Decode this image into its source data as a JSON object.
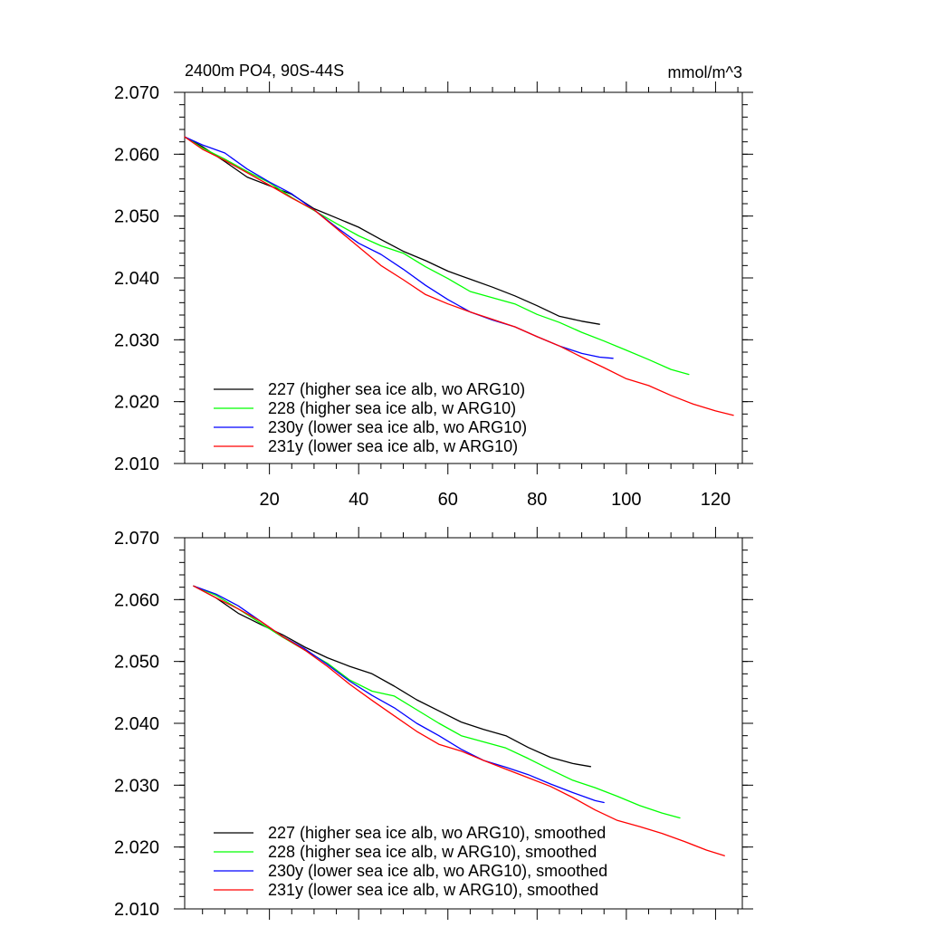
{
  "figure_title": "2400m PO4, 90S-44S",
  "units_label": "mmol/m^3",
  "series_colors": {
    "227": "#000000",
    "228": "#00ff00",
    "230y": "#0000ff",
    "231y": "#ff0000"
  },
  "chart_data": [
    {
      "type": "line",
      "panel": "top",
      "title": "2400m PO4, 90S-44S",
      "units": "mmol/m^3",
      "xlim": [
        1,
        126
      ],
      "ylim": [
        2.01,
        2.07
      ],
      "x_ticks": [
        20,
        40,
        60,
        80,
        100,
        120
      ],
      "x_tick_labels": [
        "20",
        "40",
        "60",
        "80",
        "100",
        "120"
      ],
      "y_ticks": [
        2.01,
        2.02,
        2.03,
        2.04,
        2.05,
        2.06,
        2.07
      ],
      "y_tick_labels": [
        "2.010",
        "2.020",
        "2.030",
        "2.040",
        "2.050",
        "2.060",
        "2.070"
      ],
      "legend_position": "bottom-left",
      "series": [
        {
          "id": "227",
          "name": "227 (higher sea ice alb, wo ARG10)",
          "color": "#000000",
          "x": [
            1,
            5,
            10,
            15,
            20,
            25,
            30,
            35,
            40,
            45,
            50,
            55,
            60,
            65,
            70,
            75,
            80,
            85,
            90,
            94
          ],
          "values": [
            2.0628,
            2.0612,
            2.0588,
            2.0563,
            2.0549,
            2.0535,
            2.0512,
            2.0497,
            2.0482,
            2.0462,
            2.0443,
            2.0428,
            2.0411,
            2.0398,
            2.0385,
            2.0371,
            2.0355,
            2.0338,
            2.033,
            2.0325
          ]
        },
        {
          "id": "228",
          "name": "228 (higher sea ice alb, w ARG10)",
          "color": "#00ff00",
          "x": [
            1,
            5,
            10,
            15,
            20,
            25,
            30,
            35,
            40,
            45,
            50,
            55,
            60,
            65,
            70,
            75,
            80,
            85,
            90,
            95,
            100,
            105,
            110,
            114
          ],
          "values": [
            2.0628,
            2.061,
            2.0592,
            2.0572,
            2.0554,
            2.053,
            2.0509,
            2.0488,
            2.0468,
            2.0452,
            2.044,
            2.0418,
            2.0399,
            2.0378,
            2.0368,
            2.0358,
            2.0341,
            2.0328,
            2.0312,
            2.0298,
            2.0283,
            2.0268,
            2.0252,
            2.0244
          ]
        },
        {
          "id": "230y",
          "name": "230y (lower sea ice alb, wo ARG10)",
          "color": "#0000ff",
          "x": [
            1,
            5,
            10,
            15,
            20,
            25,
            30,
            35,
            40,
            45,
            50,
            55,
            60,
            65,
            70,
            75,
            80,
            85,
            90,
            94,
            97
          ],
          "values": [
            2.0628,
            2.0615,
            2.0602,
            2.0576,
            2.0555,
            2.0536,
            2.051,
            2.0482,
            2.0456,
            2.0438,
            2.0414,
            2.0388,
            2.0365,
            2.0345,
            2.0332,
            2.0321,
            2.0305,
            2.029,
            2.0278,
            2.0272,
            2.027
          ]
        },
        {
          "id": "231y",
          "name": "231y (lower sea ice alb, w ARG10)",
          "color": "#ff0000",
          "x": [
            1,
            5,
            10,
            15,
            20,
            25,
            30,
            35,
            40,
            45,
            50,
            55,
            60,
            65,
            70,
            75,
            80,
            85,
            90,
            95,
            100,
            105,
            110,
            115,
            120,
            124
          ],
          "values": [
            2.0628,
            2.0608,
            2.059,
            2.057,
            2.055,
            2.0529,
            2.051,
            2.048,
            2.045,
            2.042,
            2.0397,
            2.0373,
            2.0358,
            2.0345,
            2.0333,
            2.0321,
            2.0305,
            2.029,
            2.0272,
            2.0255,
            2.0237,
            2.0226,
            2.021,
            2.0196,
            2.0185,
            2.0178
          ]
        }
      ]
    },
    {
      "type": "line",
      "panel": "bottom",
      "xlim": [
        1,
        126
      ],
      "ylim": [
        2.01,
        2.07
      ],
      "x_ticks": [
        20,
        40,
        60,
        80,
        100,
        120
      ],
      "x_tick_labels": [],
      "y_ticks": [
        2.01,
        2.02,
        2.03,
        2.04,
        2.05,
        2.06,
        2.07
      ],
      "y_tick_labels": [
        "2.010",
        "2.020",
        "2.030",
        "2.040",
        "2.050",
        "2.060",
        "2.070"
      ],
      "legend_position": "bottom-left",
      "series": [
        {
          "id": "227",
          "name": "227 (higher sea ice alb, wo ARG10), smoothed",
          "color": "#000000",
          "x": [
            3,
            8,
            13,
            18,
            23,
            28,
            33,
            38,
            43,
            48,
            53,
            58,
            63,
            68,
            73,
            78,
            83,
            88,
            92
          ],
          "values": [
            2.0622,
            2.0603,
            2.0578,
            2.056,
            2.0543,
            2.0523,
            2.0506,
            2.0492,
            2.048,
            2.046,
            2.0438,
            2.042,
            2.0402,
            2.039,
            2.038,
            2.0361,
            2.0345,
            2.0335,
            2.033
          ]
        },
        {
          "id": "228",
          "name": "228 (higher sea ice alb, w ARG10), smoothed",
          "color": "#00ff00",
          "x": [
            3,
            8,
            13,
            18,
            23,
            28,
            33,
            38,
            43,
            48,
            53,
            58,
            63,
            68,
            73,
            78,
            83,
            88,
            93,
            98,
            103,
            108,
            112
          ],
          "values": [
            2.0622,
            2.0607,
            2.0585,
            2.0562,
            2.0539,
            2.0518,
            2.0497,
            2.047,
            2.0452,
            2.0444,
            2.0422,
            2.04,
            2.038,
            2.037,
            2.036,
            2.0343,
            2.0325,
            2.0308,
            2.0296,
            2.0282,
            2.0267,
            2.0255,
            2.0247
          ]
        },
        {
          "id": "230y",
          "name": "230y (lower sea ice alb, wo ARG10), smoothed",
          "color": "#0000ff",
          "x": [
            3,
            8,
            13,
            18,
            23,
            28,
            33,
            38,
            43,
            48,
            53,
            58,
            63,
            68,
            73,
            78,
            83,
            88,
            93,
            95
          ],
          "values": [
            2.0622,
            2.0609,
            2.059,
            2.0565,
            2.054,
            2.052,
            2.0495,
            2.0468,
            2.0445,
            2.0425,
            2.04,
            2.038,
            2.0358,
            2.034,
            2.0329,
            2.0317,
            2.0302,
            2.0288,
            2.0275,
            2.0272
          ]
        },
        {
          "id": "231y",
          "name": "231y (lower sea ice alb, w ARG10), smoothed",
          "color": "#ff0000",
          "x": [
            3,
            8,
            13,
            18,
            23,
            28,
            33,
            38,
            43,
            48,
            53,
            58,
            63,
            68,
            73,
            78,
            83,
            88,
            93,
            98,
            103,
            108,
            113,
            118,
            122
          ],
          "values": [
            2.0622,
            2.0603,
            2.0585,
            2.0565,
            2.054,
            2.0518,
            2.0492,
            2.0463,
            2.0437,
            2.0412,
            2.0387,
            2.0366,
            2.0355,
            2.034,
            2.0326,
            2.0312,
            2.0298,
            2.028,
            2.026,
            2.0243,
            2.0233,
            2.0222,
            2.0209,
            2.0195,
            2.0186
          ]
        }
      ]
    }
  ]
}
